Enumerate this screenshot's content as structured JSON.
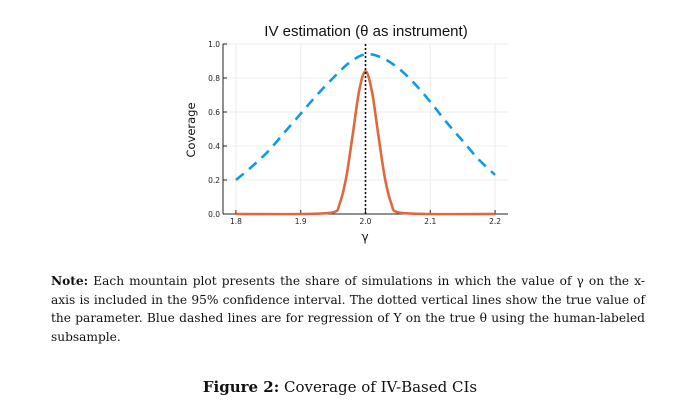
{
  "chart_data": {
    "type": "line",
    "title": "IV estimation (θ as instrument)",
    "xlabel": "γ",
    "ylabel": "Coverage",
    "xlim": [
      1.78,
      2.22
    ],
    "ylim": [
      0,
      1.0
    ],
    "x_ticks": [
      "1.8",
      "1.9",
      "2.0",
      "2.1",
      "2.2"
    ],
    "y_ticks": [
      "0.0",
      "0.2",
      "0.4",
      "0.6",
      "0.8",
      "1.0"
    ],
    "grid": true,
    "true_value": 2.0,
    "series": [
      {
        "style": "dashed",
        "color": "#0f9ae8",
        "x": [
          1.8,
          1.825,
          1.85,
          1.875,
          1.9,
          1.925,
          1.95,
          1.975,
          2.0,
          2.025,
          2.05,
          2.075,
          2.1,
          2.125,
          2.15,
          2.175,
          2.2
        ],
        "y": [
          0.2,
          0.28,
          0.37,
          0.48,
          0.59,
          0.7,
          0.8,
          0.89,
          0.94,
          0.92,
          0.86,
          0.77,
          0.66,
          0.54,
          0.43,
          0.32,
          0.23
        ]
      },
      {
        "style": "solid",
        "color": "#e0683e",
        "x": [
          1.8,
          1.9,
          1.95,
          1.96,
          1.97,
          1.98,
          1.99,
          2.0,
          2.01,
          2.02,
          2.03,
          2.04,
          2.05,
          2.1,
          2.2
        ],
        "y": [
          0.0,
          0.0,
          0.01,
          0.06,
          0.21,
          0.46,
          0.72,
          0.84,
          0.72,
          0.46,
          0.21,
          0.06,
          0.01,
          0.0,
          0.0
        ]
      }
    ]
  },
  "note": {
    "label": "Note:",
    "text": " Each mountain plot presents the share of simulations in which the value of γ on the x-axis is included in the 95% confidence interval. The dotted vertical lines show the true value of the parameter. Blue dashed lines are for regression of Y on the true θ using the human-labeled subsample."
  },
  "caption": {
    "label": "Figure 2:",
    "text": " Coverage of IV-Based CIs"
  }
}
